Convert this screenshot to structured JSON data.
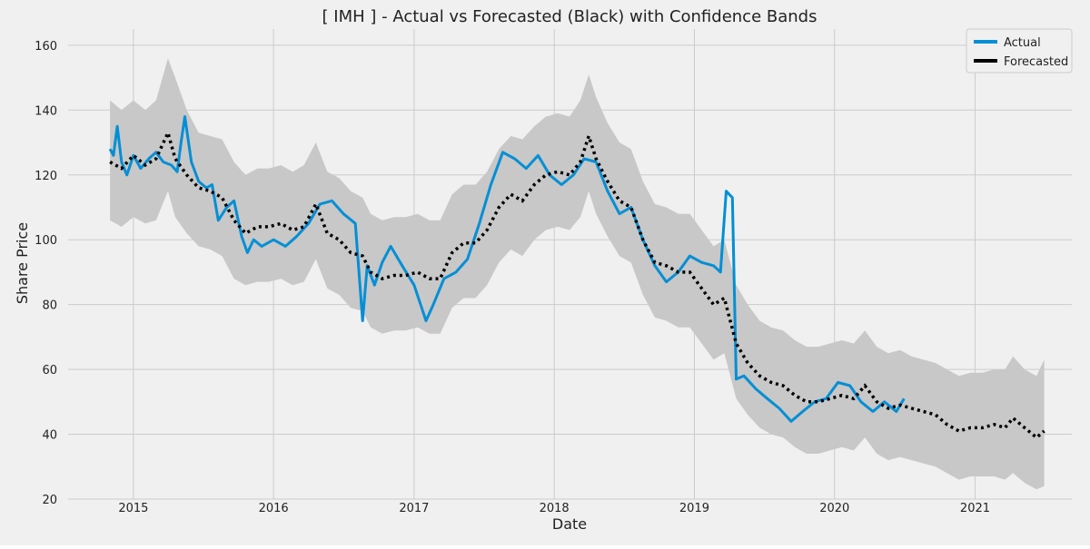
{
  "chart_data": {
    "type": "line",
    "title": "[ IMH ] - Actual vs Forecasted (Black) with Confidence Bands",
    "xlabel": "Date",
    "ylabel": "Share Price",
    "xlim": [
      "2014-07-15",
      "2021-09-10"
    ],
    "ylim": [
      20,
      165
    ],
    "x_ticks": [
      "2015",
      "2016",
      "2017",
      "2018",
      "2019",
      "2020",
      "2021"
    ],
    "y_ticks": [
      20,
      40,
      60,
      80,
      100,
      120,
      140,
      160
    ],
    "grid": true,
    "legend": {
      "placement": "top-right",
      "entries": [
        {
          "label": "Actual",
          "color": "#008fd5"
        },
        {
          "label": "Forecasted",
          "color": "#000000"
        }
      ]
    },
    "colors": {
      "actual": "#008fd5",
      "forecast": "#000000",
      "band": "#c8c8c8",
      "plot_background": "#f0f0f0",
      "grid": "#cbcbcb"
    },
    "series": [
      {
        "name": "Actual",
        "points": [
          [
            "2014-11-01",
            128
          ],
          [
            "2014-11-10",
            126
          ],
          [
            "2014-11-20",
            135
          ],
          [
            "2014-12-01",
            124
          ],
          [
            "2014-12-15",
            120
          ],
          [
            "2015-01-01",
            126
          ],
          [
            "2015-01-20",
            122
          ],
          [
            "2015-02-10",
            125
          ],
          [
            "2015-03-01",
            127
          ],
          [
            "2015-03-20",
            124
          ],
          [
            "2015-04-10",
            123
          ],
          [
            "2015-04-25",
            121
          ],
          [
            "2015-05-05",
            130
          ],
          [
            "2015-05-15",
            138
          ],
          [
            "2015-06-01",
            124
          ],
          [
            "2015-06-20",
            118
          ],
          [
            "2015-07-10",
            116
          ],
          [
            "2015-07-25",
            117
          ],
          [
            "2015-08-10",
            106
          ],
          [
            "2015-09-01",
            110
          ],
          [
            "2015-09-20",
            112
          ],
          [
            "2015-10-10",
            101
          ],
          [
            "2015-10-25",
            96
          ],
          [
            "2015-11-10",
            100
          ],
          [
            "2015-12-01",
            98
          ],
          [
            "2016-01-01",
            100
          ],
          [
            "2016-02-01",
            98
          ],
          [
            "2016-03-01",
            101
          ],
          [
            "2016-04-01",
            105
          ],
          [
            "2016-05-01",
            111
          ],
          [
            "2016-06-01",
            112
          ],
          [
            "2016-07-01",
            108
          ],
          [
            "2016-08-01",
            105
          ],
          [
            "2016-08-20",
            75
          ],
          [
            "2016-09-01",
            92
          ],
          [
            "2016-09-20",
            86
          ],
          [
            "2016-10-10",
            93
          ],
          [
            "2016-11-01",
            98
          ],
          [
            "2016-12-01",
            92
          ],
          [
            "2017-01-01",
            86
          ],
          [
            "2017-02-01",
            75
          ],
          [
            "2017-02-20",
            80
          ],
          [
            "2017-03-20",
            88
          ],
          [
            "2017-04-20",
            90
          ],
          [
            "2017-05-20",
            94
          ],
          [
            "2017-06-20",
            105
          ],
          [
            "2017-07-20",
            117
          ],
          [
            "2017-08-20",
            127
          ],
          [
            "2017-09-20",
            125
          ],
          [
            "2017-10-20",
            122
          ],
          [
            "2017-11-20",
            126
          ],
          [
            "2017-12-20",
            120
          ],
          [
            "2018-01-20",
            117
          ],
          [
            "2018-02-20",
            120
          ],
          [
            "2018-03-20",
            125
          ],
          [
            "2018-04-20",
            124
          ],
          [
            "2018-05-20",
            115
          ],
          [
            "2018-06-20",
            108
          ],
          [
            "2018-07-20",
            110
          ],
          [
            "2018-08-20",
            100
          ],
          [
            "2018-09-20",
            92
          ],
          [
            "2018-10-20",
            87
          ],
          [
            "2018-11-20",
            90
          ],
          [
            "2018-12-20",
            95
          ],
          [
            "2019-01-20",
            93
          ],
          [
            "2019-02-20",
            92
          ],
          [
            "2019-03-10",
            90
          ],
          [
            "2019-03-25",
            115
          ],
          [
            "2019-04-10",
            113
          ],
          [
            "2019-04-20",
            57
          ],
          [
            "2019-05-10",
            58
          ],
          [
            "2019-06-10",
            54
          ],
          [
            "2019-07-10",
            51
          ],
          [
            "2019-08-10",
            48
          ],
          [
            "2019-09-10",
            44
          ],
          [
            "2019-10-10",
            47
          ],
          [
            "2019-11-10",
            50
          ],
          [
            "2019-12-10",
            51
          ],
          [
            "2020-01-10",
            56
          ],
          [
            "2020-02-10",
            55
          ],
          [
            "2020-03-10",
            50
          ],
          [
            "2020-04-10",
            47
          ],
          [
            "2020-05-10",
            50
          ],
          [
            "2020-06-10",
            47
          ],
          [
            "2020-06-30",
            51
          ]
        ]
      },
      {
        "name": "Forecasted",
        "points": [
          [
            "2014-11-01",
            124
          ],
          [
            "2014-12-01",
            122
          ],
          [
            "2015-01-01",
            126
          ],
          [
            "2015-02-01",
            123
          ],
          [
            "2015-03-01",
            125
          ],
          [
            "2015-04-01",
            133
          ],
          [
            "2015-04-20",
            125
          ],
          [
            "2015-05-20",
            120
          ],
          [
            "2015-06-20",
            116
          ],
          [
            "2015-07-20",
            115
          ],
          [
            "2015-08-20",
            113
          ],
          [
            "2015-09-20",
            106
          ],
          [
            "2015-10-20",
            102
          ],
          [
            "2015-11-20",
            104
          ],
          [
            "2015-12-20",
            104
          ],
          [
            "2016-01-20",
            105
          ],
          [
            "2016-02-20",
            103
          ],
          [
            "2016-03-20",
            104
          ],
          [
            "2016-04-20",
            111
          ],
          [
            "2016-05-20",
            102
          ],
          [
            "2016-06-20",
            100
          ],
          [
            "2016-07-20",
            96
          ],
          [
            "2016-08-20",
            95
          ],
          [
            "2016-09-10",
            90
          ],
          [
            "2016-10-10",
            88
          ],
          [
            "2016-11-10",
            89
          ],
          [
            "2016-12-10",
            89
          ],
          [
            "2017-01-10",
            90
          ],
          [
            "2017-02-10",
            88
          ],
          [
            "2017-03-10",
            88
          ],
          [
            "2017-04-10",
            96
          ],
          [
            "2017-05-10",
            99
          ],
          [
            "2017-06-10",
            99
          ],
          [
            "2017-07-10",
            103
          ],
          [
            "2017-08-10",
            110
          ],
          [
            "2017-09-10",
            114
          ],
          [
            "2017-10-10",
            112
          ],
          [
            "2017-11-10",
            117
          ],
          [
            "2017-12-10",
            120
          ],
          [
            "2018-01-10",
            121
          ],
          [
            "2018-02-10",
            120
          ],
          [
            "2018-03-10",
            124
          ],
          [
            "2018-04-01",
            132
          ],
          [
            "2018-04-20",
            125
          ],
          [
            "2018-05-20",
            118
          ],
          [
            "2018-06-20",
            112
          ],
          [
            "2018-07-20",
            110
          ],
          [
            "2018-08-20",
            100
          ],
          [
            "2018-09-20",
            93
          ],
          [
            "2018-10-20",
            92
          ],
          [
            "2018-11-20",
            90
          ],
          [
            "2018-12-20",
            90
          ],
          [
            "2019-01-20",
            85
          ],
          [
            "2019-02-20",
            80
          ],
          [
            "2019-03-20",
            82
          ],
          [
            "2019-04-20",
            68
          ],
          [
            "2019-05-20",
            62
          ],
          [
            "2019-06-20",
            58
          ],
          [
            "2019-07-20",
            56
          ],
          [
            "2019-08-20",
            55
          ],
          [
            "2019-09-20",
            52
          ],
          [
            "2019-10-20",
            50
          ],
          [
            "2019-11-20",
            50
          ],
          [
            "2019-12-20",
            51
          ],
          [
            "2020-01-20",
            52
          ],
          [
            "2020-02-20",
            51
          ],
          [
            "2020-03-20",
            55
          ],
          [
            "2020-04-20",
            50
          ],
          [
            "2020-05-20",
            48
          ],
          [
            "2020-06-20",
            49
          ],
          [
            "2020-07-20",
            48
          ],
          [
            "2020-08-20",
            47
          ],
          [
            "2020-09-20",
            46
          ],
          [
            "2020-10-20",
            43
          ],
          [
            "2020-11-20",
            41
          ],
          [
            "2020-12-20",
            42
          ],
          [
            "2021-01-20",
            42
          ],
          [
            "2021-02-20",
            43
          ],
          [
            "2021-03-20",
            42
          ],
          [
            "2021-04-10",
            45
          ],
          [
            "2021-05-10",
            42
          ],
          [
            "2021-06-10",
            39
          ],
          [
            "2021-06-30",
            41
          ]
        ]
      },
      {
        "name": "Confidence Band",
        "points": [
          [
            "2014-11-01",
            106,
            143
          ],
          [
            "2014-12-01",
            104,
            140
          ],
          [
            "2015-01-01",
            107,
            143
          ],
          [
            "2015-02-01",
            105,
            140
          ],
          [
            "2015-03-01",
            106,
            143
          ],
          [
            "2015-04-01",
            115,
            156
          ],
          [
            "2015-04-20",
            107,
            150
          ],
          [
            "2015-05-20",
            102,
            140
          ],
          [
            "2015-06-20",
            98,
            133
          ],
          [
            "2015-07-20",
            97,
            132
          ],
          [
            "2015-08-20",
            95,
            131
          ],
          [
            "2015-09-20",
            88,
            124
          ],
          [
            "2015-10-20",
            86,
            120
          ],
          [
            "2015-11-20",
            87,
            122
          ],
          [
            "2015-12-20",
            87,
            122
          ],
          [
            "2016-01-20",
            88,
            123
          ],
          [
            "2016-02-20",
            86,
            121
          ],
          [
            "2016-03-20",
            87,
            123
          ],
          [
            "2016-04-20",
            94,
            130
          ],
          [
            "2016-05-20",
            85,
            121
          ],
          [
            "2016-06-20",
            83,
            119
          ],
          [
            "2016-07-20",
            79,
            115
          ],
          [
            "2016-08-20",
            78,
            113
          ],
          [
            "2016-09-10",
            73,
            108
          ],
          [
            "2016-10-10",
            71,
            106
          ],
          [
            "2016-11-10",
            72,
            107
          ],
          [
            "2016-12-10",
            72,
            107
          ],
          [
            "2017-01-10",
            73,
            108
          ],
          [
            "2017-02-10",
            71,
            106
          ],
          [
            "2017-03-10",
            71,
            106
          ],
          [
            "2017-04-10",
            79,
            114
          ],
          [
            "2017-05-10",
            82,
            117
          ],
          [
            "2017-06-10",
            82,
            117
          ],
          [
            "2017-07-10",
            86,
            121
          ],
          [
            "2017-08-10",
            93,
            128
          ],
          [
            "2017-09-10",
            97,
            132
          ],
          [
            "2017-10-10",
            95,
            131
          ],
          [
            "2017-11-10",
            100,
            135
          ],
          [
            "2017-12-10",
            103,
            138
          ],
          [
            "2018-01-10",
            104,
            139
          ],
          [
            "2018-02-10",
            103,
            138
          ],
          [
            "2018-03-10",
            107,
            143
          ],
          [
            "2018-04-01",
            115,
            151
          ],
          [
            "2018-04-20",
            108,
            144
          ],
          [
            "2018-05-20",
            101,
            136
          ],
          [
            "2018-06-20",
            95,
            130
          ],
          [
            "2018-07-20",
            93,
            128
          ],
          [
            "2018-08-20",
            83,
            118
          ],
          [
            "2018-09-20",
            76,
            111
          ],
          [
            "2018-10-20",
            75,
            110
          ],
          [
            "2018-11-20",
            73,
            108
          ],
          [
            "2018-12-20",
            73,
            108
          ],
          [
            "2019-01-20",
            68,
            103
          ],
          [
            "2019-02-20",
            63,
            98
          ],
          [
            "2019-03-20",
            65,
            100
          ],
          [
            "2019-04-20",
            51,
            86
          ],
          [
            "2019-05-20",
            46,
            80
          ],
          [
            "2019-06-20",
            42,
            75
          ],
          [
            "2019-07-20",
            40,
            73
          ],
          [
            "2019-08-20",
            39,
            72
          ],
          [
            "2019-09-20",
            36,
            69
          ],
          [
            "2019-10-20",
            34,
            67
          ],
          [
            "2019-11-20",
            34,
            67
          ],
          [
            "2019-12-20",
            35,
            68
          ],
          [
            "2020-01-20",
            36,
            69
          ],
          [
            "2020-02-20",
            35,
            68
          ],
          [
            "2020-03-20",
            39,
            72
          ],
          [
            "2020-04-20",
            34,
            67
          ],
          [
            "2020-05-20",
            32,
            65
          ],
          [
            "2020-06-20",
            33,
            66
          ],
          [
            "2020-07-20",
            32,
            64
          ],
          [
            "2020-08-20",
            31,
            63
          ],
          [
            "2020-09-20",
            30,
            62
          ],
          [
            "2020-10-20",
            28,
            60
          ],
          [
            "2020-11-20",
            26,
            58
          ],
          [
            "2020-12-20",
            27,
            59
          ],
          [
            "2021-01-20",
            27,
            59
          ],
          [
            "2021-02-20",
            27,
            60
          ],
          [
            "2021-03-20",
            26,
            60
          ],
          [
            "2021-04-10",
            28,
            64
          ],
          [
            "2021-05-10",
            25,
            60
          ],
          [
            "2021-06-10",
            23,
            58
          ],
          [
            "2021-06-30",
            24,
            63
          ]
        ]
      }
    ]
  }
}
